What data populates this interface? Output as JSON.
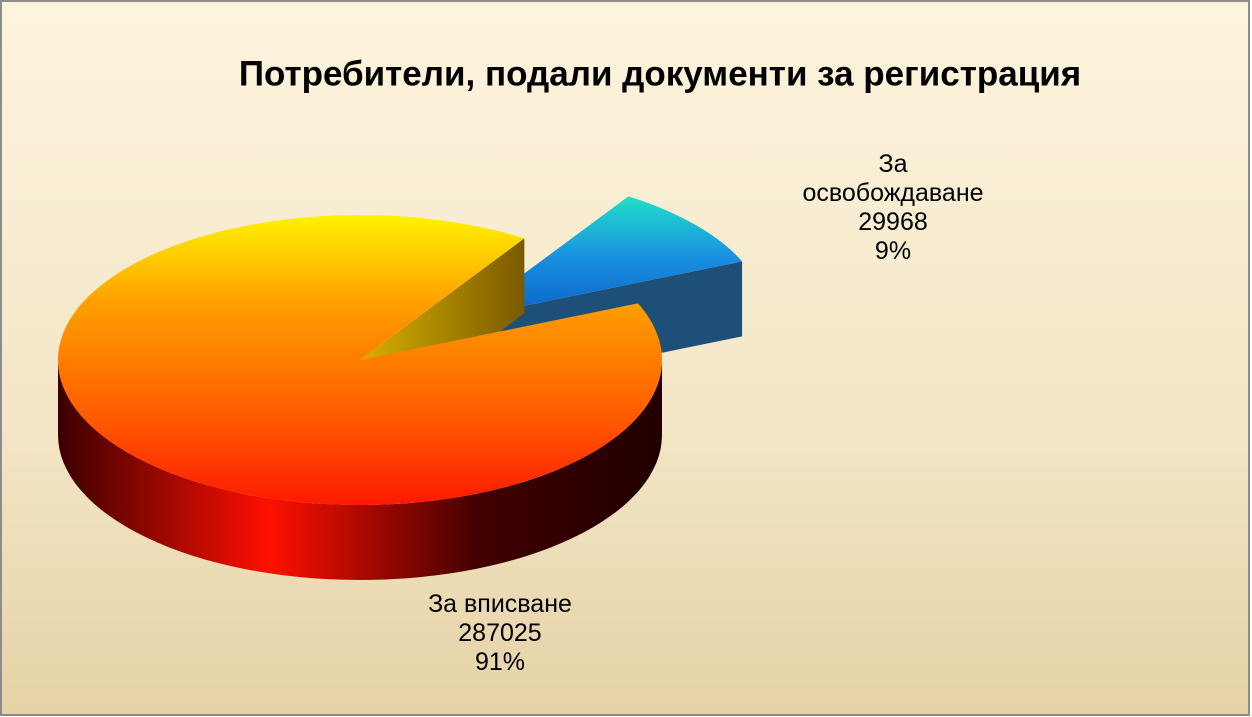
{
  "chart_data": {
    "type": "pie3d",
    "title": "Потребители,  подали документи за регистрация",
    "categories": [
      "За вписване",
      "За освобождаване"
    ],
    "values": [
      287025,
      29968
    ],
    "percent_labels": [
      "91%",
      "9%"
    ],
    "colors": [
      "#ff5a00",
      "#1a7fd8"
    ],
    "exploded": [
      false,
      true
    ]
  }
}
